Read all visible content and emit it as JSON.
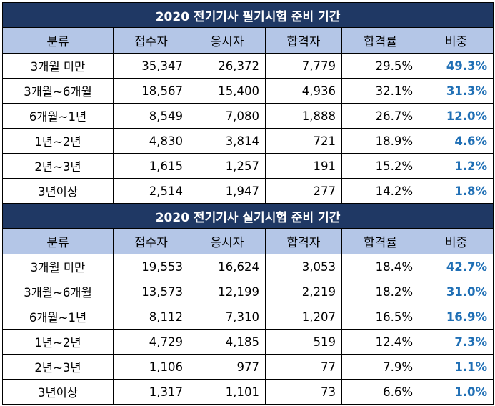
{
  "sections": [
    {
      "title": "2020 전기기사 필기시험 준비 기간",
      "headers": [
        "분류",
        "접수자",
        "응시자",
        "합격자",
        "합격률",
        "비중"
      ],
      "rows": [
        {
          "category": "3개월 미만",
          "applicants": "35,347",
          "examinees": "26,372",
          "passers": "7,779",
          "pass_rate": "29.5%",
          "share": "49.3%"
        },
        {
          "category": "3개월~6개월",
          "applicants": "18,567",
          "examinees": "15,400",
          "passers": "4,936",
          "pass_rate": "32.1%",
          "share": "31.3%"
        },
        {
          "category": "6개월~1년",
          "applicants": "8,549",
          "examinees": "7,080",
          "passers": "1,888",
          "pass_rate": "26.7%",
          "share": "12.0%"
        },
        {
          "category": "1년~2년",
          "applicants": "4,830",
          "examinees": "3,814",
          "passers": "721",
          "pass_rate": "18.9%",
          "share": "4.6%"
        },
        {
          "category": "2년~3년",
          "applicants": "1,615",
          "examinees": "1,257",
          "passers": "191",
          "pass_rate": "15.2%",
          "share": "1.2%"
        },
        {
          "category": "3년이상",
          "applicants": "2,514",
          "examinees": "1,947",
          "passers": "277",
          "pass_rate": "14.2%",
          "share": "1.8%"
        }
      ]
    },
    {
      "title": "2020 전기기사 실기시험 준비 기간",
      "headers": [
        "분류",
        "접수자",
        "응시자",
        "합격자",
        "합격률",
        "비중"
      ],
      "rows": [
        {
          "category": "3개월 미만",
          "applicants": "19,553",
          "examinees": "16,624",
          "passers": "3,053",
          "pass_rate": "18.4%",
          "share": "42.7%"
        },
        {
          "category": "3개월~6개월",
          "applicants": "13,573",
          "examinees": "12,199",
          "passers": "2,219",
          "pass_rate": "18.2%",
          "share": "31.0%"
        },
        {
          "category": "6개월~1년",
          "applicants": "8,112",
          "examinees": "7,310",
          "passers": "1,207",
          "pass_rate": "16.5%",
          "share": "16.9%"
        },
        {
          "category": "1년~2년",
          "applicants": "4,729",
          "examinees": "4,185",
          "passers": "519",
          "pass_rate": "12.4%",
          "share": "7.3%"
        },
        {
          "category": "2년~3년",
          "applicants": "1,106",
          "examinees": "977",
          "passers": "77",
          "pass_rate": "7.9%",
          "share": "1.1%"
        },
        {
          "category": "3년이상",
          "applicants": "1,317",
          "examinees": "1,101",
          "passers": "73",
          "pass_rate": "6.6%",
          "share": "1.0%"
        }
      ]
    }
  ],
  "colors": {
    "title_bg": "#1f3864",
    "header_bg": "#b4c6e7",
    "share_text": "#1f6fb5"
  }
}
